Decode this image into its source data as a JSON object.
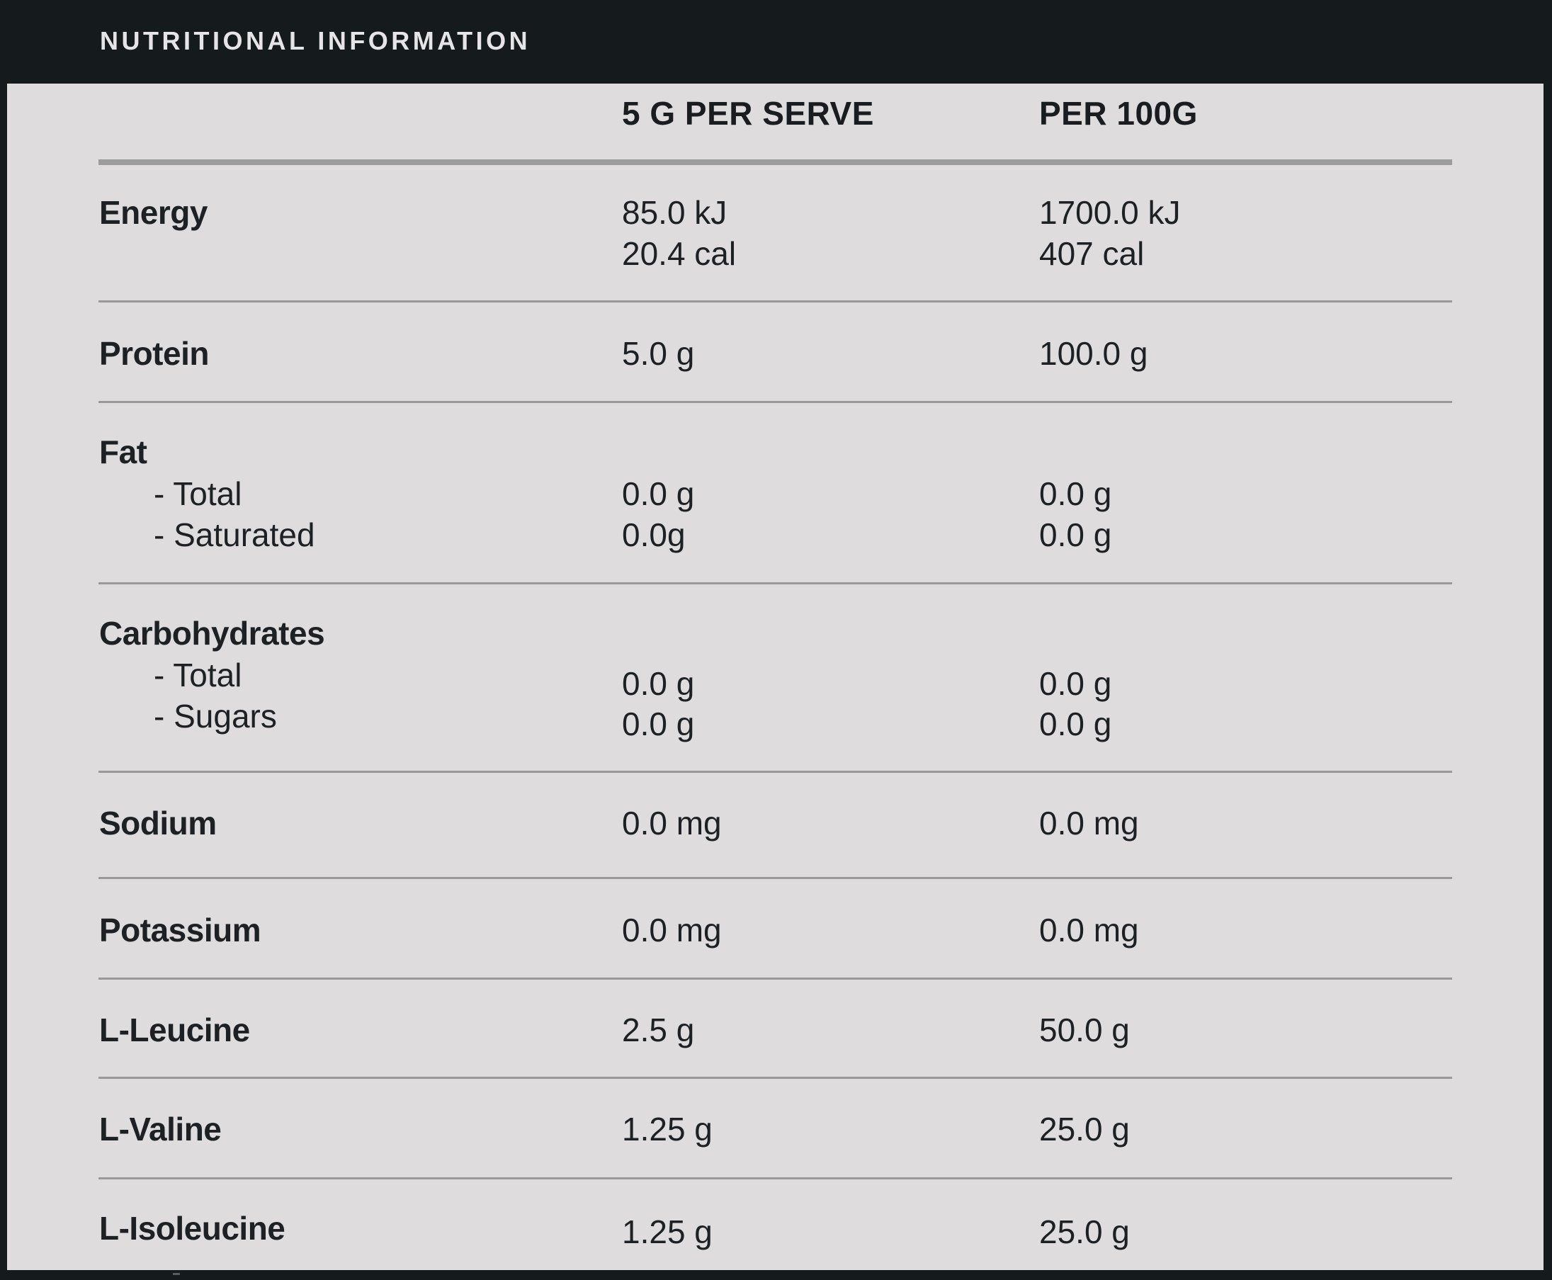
{
  "header": {
    "title": "NUTRITIONAL INFORMATION"
  },
  "columns": {
    "per_serve": "5 G PER SERVE",
    "per_100g": "PER 100G"
  },
  "rows": {
    "energy": {
      "label": "Energy",
      "serve_kj": "85.0 kJ",
      "serve_cal": "20.4 cal",
      "per100_kj": "1700.0 kJ",
      "per100_cal": "407 cal"
    },
    "protein": {
      "label": "Protein",
      "serve": "5.0 g",
      "per100": "100.0 g"
    },
    "fat": {
      "label": "Fat",
      "total_label": "- Total",
      "saturated_label": "- Saturated",
      "serve_total": "0.0 g",
      "serve_saturated": "0.0g",
      "per100_total": "0.0 g",
      "per100_saturated": "0.0 g"
    },
    "carbohydrates": {
      "label": "Carbohydrates",
      "total_label": "- Total",
      "sugars_label": "- Sugars",
      "serve_total": "0.0 g",
      "serve_sugars": "0.0 g",
      "per100_total": "0.0 g",
      "per100_sugars": "0.0 g"
    },
    "sodium": {
      "label": "Sodium",
      "serve": "0.0 mg",
      "per100": "0.0 mg"
    },
    "potassium": {
      "label": "Potassium",
      "serve": "0.0 mg",
      "per100": "0.0 mg"
    },
    "leucine": {
      "label": "L-Leucine",
      "serve": "2.5 g",
      "per100": "50.0 g"
    },
    "valine": {
      "label": "L-Valine",
      "serve": "1.25 g",
      "per100": "25.0 g"
    },
    "isoleucine": {
      "label": "L-Isoleucine",
      "serve": "1.25 g",
      "per100": "25.0 g"
    }
  }
}
